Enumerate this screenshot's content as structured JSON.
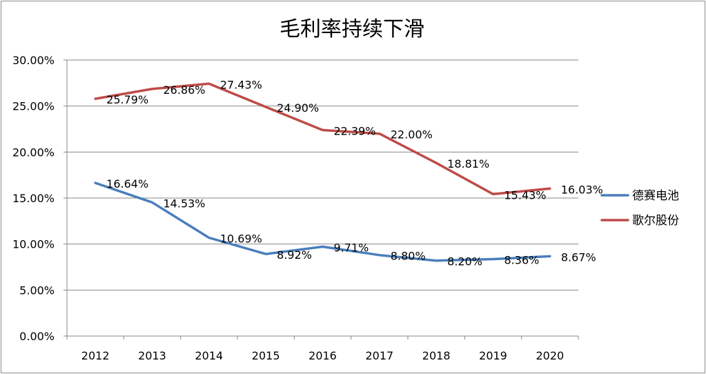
{
  "chart_data": {
    "type": "line",
    "title": "毛利率持续下滑",
    "xlabel": "",
    "ylabel": "",
    "categories": [
      "2012",
      "2013",
      "2014",
      "2015",
      "2016",
      "2017",
      "2018",
      "2019",
      "2020"
    ],
    "ylim": [
      0,
      30
    ],
    "yticks": [
      "0.00%",
      "5.00%",
      "10.00%",
      "15.00%",
      "20.00%",
      "25.00%",
      "30.00%"
    ],
    "grid": true,
    "legend_position": "right",
    "series": [
      {
        "name": "德赛电池",
        "color": "#4a7ebb",
        "values": [
          16.64,
          14.53,
          10.69,
          8.92,
          9.71,
          8.8,
          8.2,
          8.36,
          8.67
        ],
        "labels": [
          "16.64%",
          "14.53%",
          "10.69%",
          "8.92%",
          "9.71%",
          "8.80%",
          "8.20%",
          "8.36%",
          "8.67%"
        ]
      },
      {
        "name": "歌尔股份",
        "color": "#be4b48",
        "values": [
          25.79,
          26.86,
          27.43,
          24.9,
          22.39,
          22.0,
          18.81,
          15.43,
          16.03
        ],
        "labels": [
          "25.79%",
          "26.86%",
          "27.43%",
          "24.90%",
          "22.39%",
          "22.00%",
          "18.81%",
          "15.43%",
          "16.03%"
        ]
      }
    ]
  }
}
